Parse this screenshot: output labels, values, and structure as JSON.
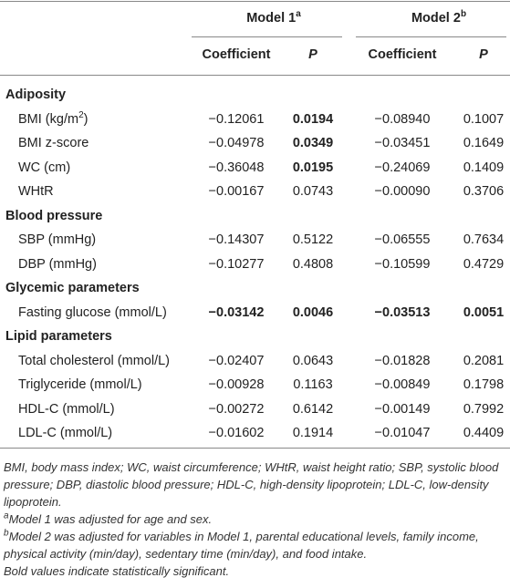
{
  "header": {
    "model1": {
      "label": "Model 1",
      "sup": "a"
    },
    "model2": {
      "label": "Model 2",
      "sup": "b"
    },
    "subheaders": [
      "Coefficient",
      "P",
      "Coefficient",
      "P"
    ]
  },
  "groups": [
    {
      "title": "Adiposity",
      "rows": [
        {
          "label": "BMI (kg/m",
          "label_sup": "2",
          "label_end": ")",
          "cells": [
            "−0.12061",
            "0.0194",
            "−0.08940",
            "0.1007"
          ],
          "bold": [
            false,
            true,
            false,
            false
          ]
        },
        {
          "label": "BMI z-score",
          "cells": [
            "−0.04978",
            "0.0349",
            "−0.03451",
            "0.1649"
          ],
          "bold": [
            false,
            true,
            false,
            false
          ]
        },
        {
          "label": "WC (cm)",
          "cells": [
            "−0.36048",
            "0.0195",
            "−0.24069",
            "0.1409"
          ],
          "bold": [
            false,
            true,
            false,
            false
          ]
        },
        {
          "label": "WHtR",
          "cells": [
            "−0.00167",
            "0.0743",
            "−0.00090",
            "0.3706"
          ],
          "bold": [
            false,
            false,
            false,
            false
          ]
        }
      ]
    },
    {
      "title": "Blood pressure",
      "rows": [
        {
          "label": "SBP (mmHg)",
          "cells": [
            "−0.14307",
            "0.5122",
            "−0.06555",
            "0.7634"
          ],
          "bold": [
            false,
            false,
            false,
            false
          ]
        },
        {
          "label": "DBP (mmHg)",
          "cells": [
            "−0.10277",
            "0.4808",
            "−0.10599",
            "0.4729"
          ],
          "bold": [
            false,
            false,
            false,
            false
          ]
        }
      ]
    },
    {
      "title": "Glycemic parameters",
      "rows": [
        {
          "label": "Fasting glucose (mmol/L)",
          "cells": [
            "−0.03142",
            "0.0046",
            "−0.03513",
            "0.0051"
          ],
          "bold": [
            true,
            true,
            true,
            true
          ]
        }
      ]
    },
    {
      "title": "Lipid parameters",
      "rows": [
        {
          "label": "Total cholesterol (mmol/L)",
          "cells": [
            "−0.02407",
            "0.0643",
            "−0.01828",
            "0.2081"
          ],
          "bold": [
            false,
            false,
            false,
            false
          ]
        },
        {
          "label": "Triglyceride (mmol/L)",
          "cells": [
            "−0.00928",
            "0.1163",
            "−0.00849",
            "0.1798"
          ],
          "bold": [
            false,
            false,
            false,
            false
          ]
        },
        {
          "label": "HDL-C (mmol/L)",
          "cells": [
            "−0.00272",
            "0.6142",
            "−0.00149",
            "0.7992"
          ],
          "bold": [
            false,
            false,
            false,
            false
          ]
        },
        {
          "label": "LDL-C (mmol/L)",
          "cells": [
            "−0.01602",
            "0.1914",
            "−0.01047",
            "0.4409"
          ],
          "bold": [
            false,
            false,
            false,
            false
          ]
        }
      ]
    }
  ],
  "notes": {
    "abbreviations": "BMI, body mass index; WC, waist circumference; WHtR, waist height ratio; SBP, systolic blood pressure; DBP, diastolic blood pressure; HDL-C, high-density lipoprotein; LDL-C, low-density lipoprotein.",
    "a": {
      "sup": "a",
      "text": "Model 1 was adjusted for age and sex."
    },
    "b": {
      "sup": "b",
      "text": "Model 2 was adjusted for variables in Model 1, parental educational levels, family income, physical activity (min/day), sedentary time (min/day), and food intake."
    },
    "bold_note": "Bold values indicate statistically significant."
  }
}
